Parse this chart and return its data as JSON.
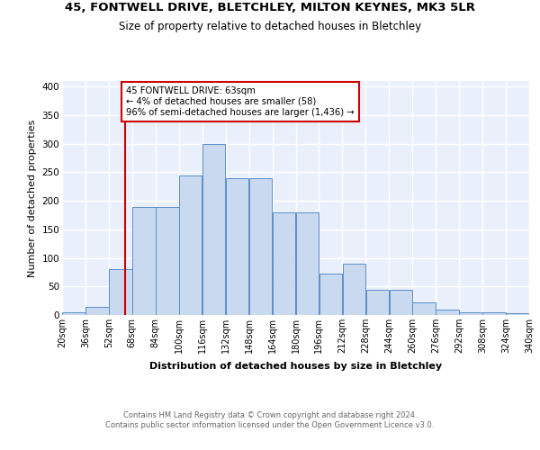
{
  "title": "45, FONTWELL DRIVE, BLETCHLEY, MILTON KEYNES, MK3 5LR",
  "subtitle": "Size of property relative to detached houses in Bletchley",
  "xlabel": "Distribution of detached houses by size in Bletchley",
  "ylabel": "Number of detached properties",
  "bin_edges": [
    20,
    36,
    52,
    68,
    84,
    100,
    116,
    132,
    148,
    164,
    180,
    196,
    212,
    228,
    244,
    260,
    276,
    292,
    308,
    324,
    340
  ],
  "bar_heights": [
    4,
    14,
    80,
    190,
    190,
    245,
    300,
    240,
    240,
    180,
    180,
    72,
    90,
    44,
    44,
    22,
    10,
    5,
    5,
    3
  ],
  "bar_color": "#c9d9ef",
  "bar_edge_color": "#5b8fc9",
  "property_size": 63,
  "vline_color": "#cc0000",
  "annotation_text": "45 FONTWELL DRIVE: 63sqm\n← 4% of detached houses are smaller (58)\n96% of semi-detached houses are larger (1,436) →",
  "annotation_box_color": "white",
  "annotation_box_edge_color": "#cc0000",
  "ylim": [
    0,
    410
  ],
  "background_color": "#eaf0fb",
  "grid_color": "white",
  "footer_text": "Contains HM Land Registry data © Crown copyright and database right 2024.\nContains public sector information licensed under the Open Government Licence v3.0.",
  "tick_labels": [
    "20sqm",
    "36sqm",
    "52sqm",
    "68sqm",
    "84sqm",
    "100sqm",
    "116sqm",
    "132sqm",
    "148sqm",
    "164sqm",
    "180sqm",
    "196sqm",
    "212sqm",
    "228sqm",
    "244sqm",
    "260sqm",
    "276sqm",
    "292sqm",
    "308sqm",
    "324sqm",
    "340sqm"
  ],
  "yticks": [
    0,
    50,
    100,
    150,
    200,
    250,
    300,
    350,
    400
  ]
}
